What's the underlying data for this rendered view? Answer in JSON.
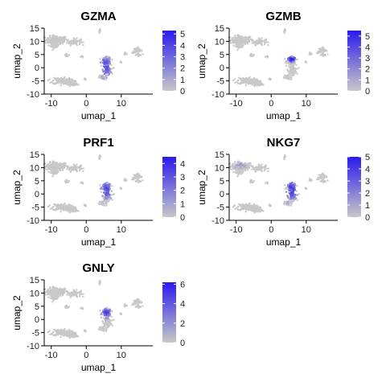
{
  "chart_data": [
    {
      "type": "scatter",
      "title": "GZMA",
      "xlabel": "umap_1",
      "ylabel": "umap_2",
      "xlim": [
        -12,
        19
      ],
      "ylim": [
        -10,
        15
      ],
      "xticks": [
        -10,
        0,
        10
      ],
      "yticks": [
        -10,
        -5,
        0,
        5,
        10,
        15
      ],
      "legend": {
        "placement": "right",
        "max": 5.3,
        "ticks": [
          0,
          1,
          2,
          3,
          4,
          5
        ]
      },
      "colors": {
        "low": "#c8c8c8",
        "high": "#2a1aee"
      },
      "hotspots": [
        {
          "x": 5.5,
          "y": 0.5,
          "sx": 1.3,
          "sy": 3.0,
          "level": 0.55
        },
        {
          "x": 4.0,
          "y": 9.0,
          "sx": 0.4,
          "sy": 0.4,
          "level": 0.4
        },
        {
          "x": 4.5,
          "y": 3.0,
          "sx": 0.8,
          "sy": 0.6,
          "level": 0.5
        }
      ]
    },
    {
      "type": "scatter",
      "title": "GZMB",
      "xlabel": "umap_1",
      "ylabel": "umap_2",
      "xlim": [
        -12,
        19
      ],
      "ylim": [
        -10,
        15
      ],
      "xticks": [
        -10,
        0,
        10
      ],
      "yticks": [
        -10,
        -5,
        0,
        5,
        10,
        15
      ],
      "legend": {
        "placement": "right",
        "max": 5.5,
        "ticks": [
          0,
          1,
          2,
          3,
          4,
          5
        ]
      },
      "colors": {
        "low": "#c8c8c8",
        "high": "#2a1aee"
      },
      "hotspots": [
        {
          "x": 5.8,
          "y": 3.3,
          "sx": 0.9,
          "sy": 0.8,
          "level": 0.75
        },
        {
          "x": -6.5,
          "y": 3.3,
          "sx": 0.4,
          "sy": 0.4,
          "level": 0.5
        }
      ]
    },
    {
      "type": "scatter",
      "title": "PRF1",
      "xlabel": "umap_1",
      "ylabel": "umap_2",
      "xlim": [
        -12,
        19
      ],
      "ylim": [
        -10,
        15
      ],
      "xticks": [
        -10,
        0,
        10
      ],
      "yticks": [
        -10,
        -5,
        0,
        5,
        10,
        15
      ],
      "legend": {
        "placement": "right",
        "max": 4.5,
        "ticks": [
          0,
          1,
          2,
          3,
          4
        ]
      },
      "colors": {
        "low": "#c8c8c8",
        "high": "#2a1aee"
      },
      "hotspots": [
        {
          "x": 5.8,
          "y": 1.5,
          "sx": 1.2,
          "sy": 2.5,
          "level": 0.55
        }
      ]
    },
    {
      "type": "scatter",
      "title": "NKG7",
      "xlabel": "umap_1",
      "ylabel": "umap_2",
      "xlim": [
        -12,
        19
      ],
      "ylim": [
        -10,
        15
      ],
      "xticks": [
        -10,
        0,
        10
      ],
      "yticks": [
        -10,
        -5,
        0,
        5,
        10,
        15
      ],
      "legend": {
        "placement": "right",
        "max": 5.0,
        "ticks": [
          0,
          1,
          2,
          3,
          4,
          5
        ]
      },
      "colors": {
        "low": "#c8c8c8",
        "high": "#2a1aee"
      },
      "hotspots": [
        {
          "x": 5.8,
          "y": 1.5,
          "sx": 1.3,
          "sy": 3.0,
          "level": 0.6
        },
        {
          "x": -9.0,
          "y": 11.0,
          "sx": 1.5,
          "sy": 1.0,
          "level": 0.25
        }
      ]
    },
    {
      "type": "scatter",
      "title": "GNLY",
      "xlabel": "umap_1",
      "ylabel": "umap_2",
      "xlim": [
        -12,
        19
      ],
      "ylim": [
        -10,
        15
      ],
      "xticks": [
        -10,
        0,
        10
      ],
      "yticks": [
        -10,
        -5,
        0,
        5,
        10,
        15
      ],
      "legend": {
        "placement": "right",
        "max": 6.2,
        "ticks": [
          0,
          2,
          4,
          6
        ]
      },
      "colors": {
        "low": "#c8c8c8",
        "high": "#2a1aee"
      },
      "hotspots": [
        {
          "x": 5.8,
          "y": 2.5,
          "sx": 1.0,
          "sy": 1.5,
          "level": 0.6
        }
      ]
    }
  ]
}
